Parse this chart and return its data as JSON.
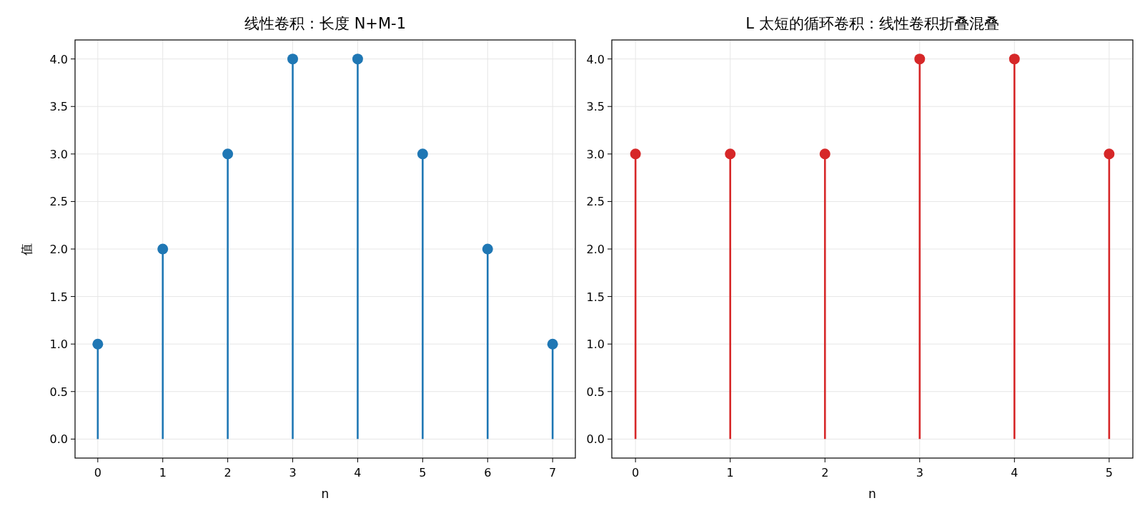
{
  "chart_data": [
    {
      "type": "lollipop",
      "title": "线性卷积：长度 N+M-1",
      "xlabel": "n",
      "ylabel": "值",
      "x": [
        0,
        1,
        2,
        3,
        4,
        5,
        6,
        7
      ],
      "values": [
        1,
        2,
        3,
        4,
        4,
        3,
        2,
        1
      ],
      "color": "#1f77b4",
      "xlim": [
        -0.35,
        7.35
      ],
      "ylim": [
        -0.2,
        4.2
      ],
      "xticks": [
        0,
        1,
        2,
        3,
        4,
        5,
        6,
        7
      ],
      "yticks": [
        {
          "value": 0,
          "label": "0.0"
        },
        {
          "value": 0.5,
          "label": "0.5"
        },
        {
          "value": 1,
          "label": "1.0"
        },
        {
          "value": 1.5,
          "label": "1.5"
        },
        {
          "value": 2,
          "label": "2.0"
        },
        {
          "value": 2.5,
          "label": "2.5"
        },
        {
          "value": 3,
          "label": "3.0"
        },
        {
          "value": 3.5,
          "label": "3.5"
        },
        {
          "value": 4,
          "label": "4.0"
        }
      ],
      "grid": true,
      "marker": "circle"
    },
    {
      "type": "lollipop",
      "title": "L 太短的循环卷积：线性卷积折叠混叠",
      "xlabel": "n",
      "x": [
        0,
        1,
        2,
        3,
        4,
        5
      ],
      "values": [
        3,
        3,
        3,
        4,
        4,
        3
      ],
      "color": "#d62728",
      "xlim": [
        -0.25,
        5.25
      ],
      "ylim": [
        -0.2,
        4.2
      ],
      "xticks": [
        0,
        1,
        2,
        3,
        4,
        5
      ],
      "yticks": [
        {
          "value": 0,
          "label": "0.0"
        },
        {
          "value": 0.5,
          "label": "0.5"
        },
        {
          "value": 1,
          "label": "1.0"
        },
        {
          "value": 1.5,
          "label": "1.5"
        },
        {
          "value": 2,
          "label": "2.0"
        },
        {
          "value": 2.5,
          "label": "2.5"
        },
        {
          "value": 3,
          "label": "3.0"
        },
        {
          "value": 3.5,
          "label": "3.5"
        },
        {
          "value": 4,
          "label": "4.0"
        }
      ],
      "grid": true,
      "marker": "circle"
    }
  ]
}
